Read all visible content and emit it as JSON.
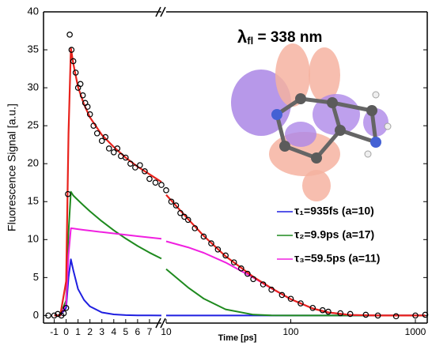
{
  "chart_data": {
    "type": "line",
    "annotation": {
      "symbol": "λ",
      "subscript": "fl",
      "text": " = 338 nm"
    },
    "xlabel": "Time [ps]",
    "ylabel": "Fluorescence Signal [a.u.]",
    "xsegments": [
      {
        "scale": "linear",
        "xlim": [
          -1.9,
          8
        ],
        "xticks": [
          -1,
          0,
          1,
          2,
          3,
          4,
          5,
          6,
          7
        ]
      },
      {
        "scale": "log",
        "xlim": [
          10,
          1245
        ],
        "xticks": [
          10,
          100,
          1000
        ]
      }
    ],
    "ylim": [
      -1,
      40
    ],
    "yticks": [
      0,
      5,
      10,
      15,
      20,
      25,
      30,
      35,
      40
    ],
    "legend": "right",
    "points": {
      "color": "#000000",
      "x": [
        -1.5,
        -1,
        -0.7,
        -0.4,
        -0.2,
        0,
        0.15,
        0.3,
        0.45,
        0.6,
        0.8,
        1,
        1.2,
        1.4,
        1.6,
        1.8,
        2,
        2.3,
        2.6,
        3,
        3.3,
        3.6,
        4,
        4.3,
        4.6,
        5,
        5.4,
        5.8,
        6.2,
        6.6,
        7,
        7.5,
        8,
        10,
        11,
        12,
        13,
        14,
        15,
        17,
        20,
        23,
        26,
        30,
        35,
        40,
        45,
        50,
        60,
        70,
        85,
        100,
        120,
        150,
        180,
        200,
        250,
        300,
        400,
        500,
        700,
        1000,
        1200
      ],
      "values": [
        0,
        0,
        0.2,
        0,
        0.3,
        1,
        16,
        37,
        35,
        33.5,
        32,
        30,
        30.5,
        29,
        28,
        27.5,
        26.5,
        25,
        24,
        23,
        23.5,
        22,
        21.5,
        22,
        21,
        20.8,
        20,
        19.5,
        19.8,
        19,
        18,
        17.5,
        17.2,
        16.5,
        15,
        14.5,
        13.5,
        13,
        12.6,
        11.5,
        10.4,
        9.5,
        8.7,
        7.9,
        7,
        6.2,
        5.5,
        4.8,
        4.1,
        3.4,
        2.7,
        2.2,
        1.6,
        1,
        0.7,
        0.5,
        0.3,
        0.2,
        0.1,
        0,
        -0.1,
        0,
        0.1
      ]
    },
    "x": [
      -1,
      -0.5,
      0,
      0.2,
      0.4,
      0.6,
      1,
      1.5,
      2,
      3,
      4,
      5,
      6,
      7,
      8,
      10,
      15,
      20,
      30,
      50,
      70,
      100,
      150,
      200,
      300,
      500,
      1000,
      1200
    ],
    "fit": {
      "color": "#e8221c",
      "values": [
        0,
        0,
        4.5,
        24,
        35.2,
        33.2,
        30.1,
        27.8,
        26.1,
        23.8,
        22.2,
        20.8,
        19.6,
        18.6,
        17.6,
        15.9,
        12.7,
        10.5,
        7.8,
        5.1,
        3.6,
        2.15,
        0.93,
        0.4,
        0.07,
        0,
        0,
        0
      ]
    },
    "series": [
      {
        "name": "τ₁=935fs (a=10)",
        "color": "#1f1fe0",
        "values": [
          0,
          0,
          1,
          5,
          7.4,
          5.97,
          3.5,
          2.05,
          1.2,
          0.41,
          0.14,
          0.05,
          0.02,
          0.01,
          0,
          0,
          0,
          0,
          0,
          0,
          0,
          0,
          0,
          0,
          0,
          0,
          0,
          0
        ]
      },
      {
        "name": "τ₂=9.9ps (a=17)",
        "color": "#1e8a1e",
        "values": [
          0,
          0,
          2,
          11,
          16.3,
          15.81,
          15.19,
          14.44,
          13.72,
          12.41,
          11.22,
          10.14,
          9.16,
          8.28,
          7.49,
          6.12,
          3.69,
          2.23,
          0.81,
          0.11,
          0.01,
          0,
          0,
          0,
          0,
          0,
          0,
          0
        ]
      },
      {
        "name": "τ₃=59.5ps (a=11)",
        "color": "#f020e0",
        "values": [
          0,
          0,
          1.5,
          8,
          11.5,
          11.46,
          11.37,
          11.27,
          11.18,
          10.99,
          10.81,
          10.63,
          10.45,
          10.28,
          10.11,
          9.77,
          8.98,
          8.26,
          6.98,
          4.99,
          3.57,
          2.15,
          0.93,
          0.4,
          0.07,
          0,
          0,
          0
        ]
      }
    ]
  }
}
